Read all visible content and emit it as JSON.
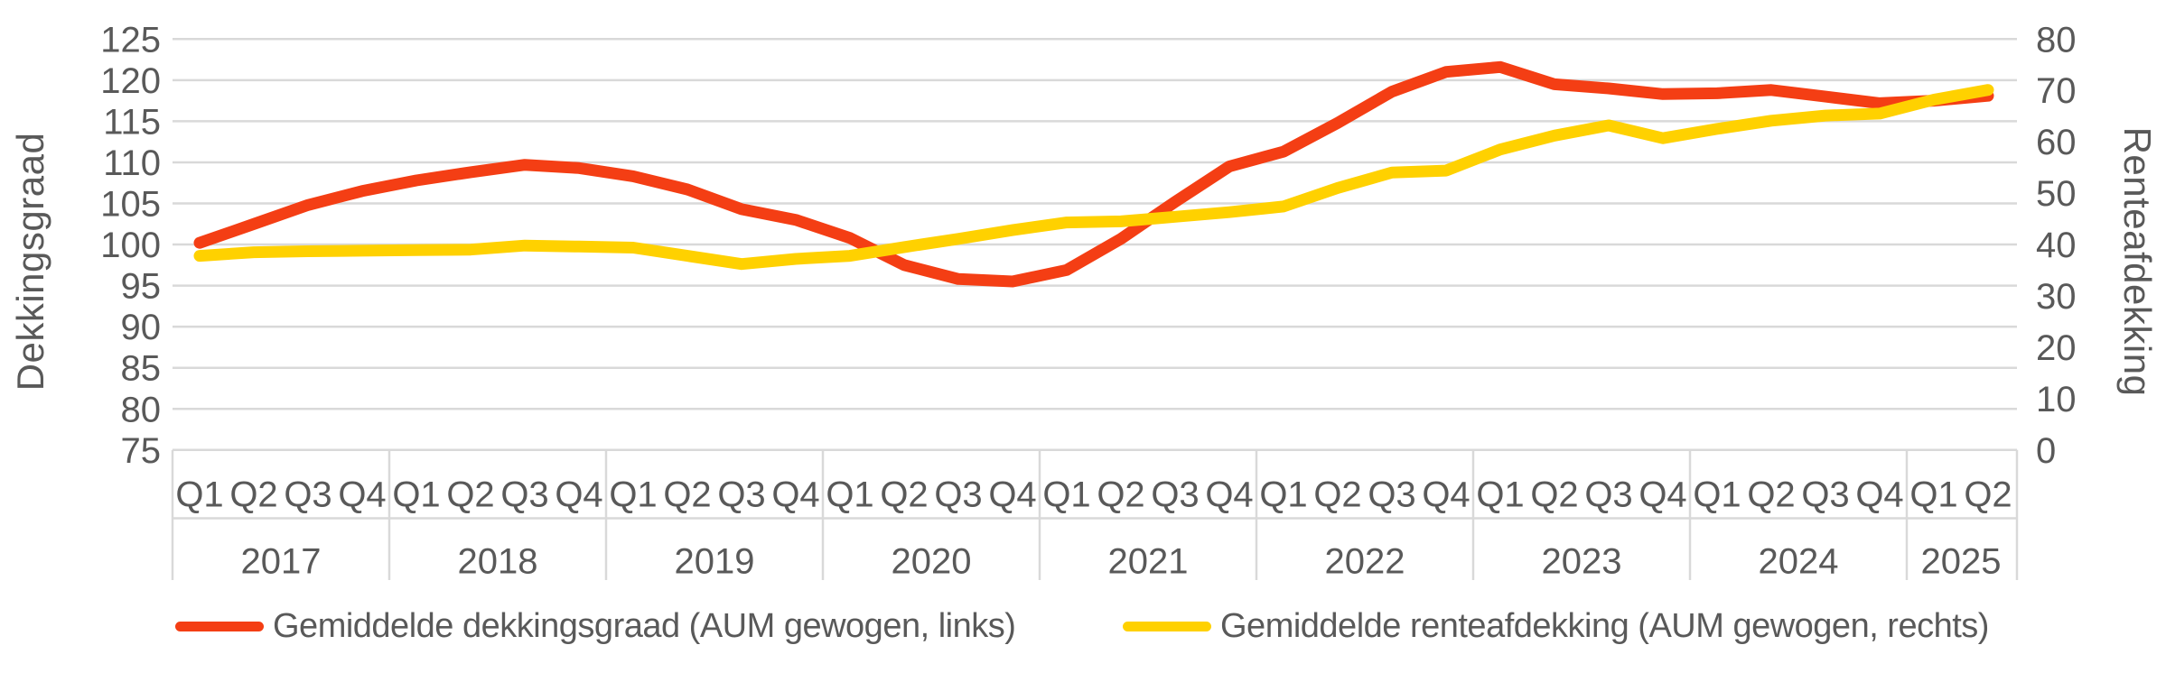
{
  "chart_data": {
    "type": "line",
    "title": "",
    "grid": true,
    "legend_position": "bottom",
    "left_axis": {
      "title": "Dekkingsgraad",
      "min": 75,
      "max": 125,
      "step": 5,
      "ticks": [
        125,
        120,
        115,
        110,
        105,
        100,
        95,
        90,
        85,
        80,
        75
      ]
    },
    "right_axis": {
      "title": "Renteafdekking",
      "min": 0,
      "max": 80,
      "step": 10,
      "ticks": [
        80,
        70,
        60,
        50,
        40,
        30,
        20,
        10,
        0
      ]
    },
    "x_axis": {
      "years": [
        {
          "label": "2017",
          "quarters": [
            "Q1",
            "Q2",
            "Q3",
            "Q4"
          ]
        },
        {
          "label": "2018",
          "quarters": [
            "Q1",
            "Q2",
            "Q3",
            "Q4"
          ]
        },
        {
          "label": "2019",
          "quarters": [
            "Q1",
            "Q2",
            "Q3",
            "Q4"
          ]
        },
        {
          "label": "2020",
          "quarters": [
            "Q1",
            "Q2",
            "Q3",
            "Q4"
          ]
        },
        {
          "label": "2021",
          "quarters": [
            "Q1",
            "Q2",
            "Q3",
            "Q4"
          ]
        },
        {
          "label": "2022",
          "quarters": [
            "Q1",
            "Q2",
            "Q3",
            "Q4"
          ]
        },
        {
          "label": "2023",
          "quarters": [
            "Q1",
            "Q2",
            "Q3",
            "Q4"
          ]
        },
        {
          "label": "2024",
          "quarters": [
            "Q1",
            "Q2",
            "Q3",
            "Q4"
          ]
        },
        {
          "label": "2025",
          "quarters": [
            "Q1",
            "Q2"
          ]
        }
      ]
    },
    "series": [
      {
        "name": "Gemiddelde dekkingsgraad (AUM gewogen, links)",
        "axis": "left",
        "color": "#F43E14",
        "values": [
          100.2,
          102.5,
          104.8,
          106.5,
          107.8,
          108.8,
          109.7,
          109.3,
          108.3,
          106.7,
          104.3,
          103.0,
          100.8,
          97.5,
          95.8,
          95.5,
          96.9,
          100.7,
          105.2,
          109.5,
          111.3,
          114.8,
          118.6,
          121.0,
          121.6,
          119.5,
          119.0,
          118.3,
          118.4,
          118.8,
          118.0,
          117.2,
          117.5,
          118.1
        ]
      },
      {
        "name": "Gemiddelde renteafdekking (AUM gewogen, rechts)",
        "axis": "right",
        "color": "#FFD100",
        "values": [
          37.8,
          38.5,
          38.7,
          38.8,
          38.9,
          39.0,
          39.8,
          39.6,
          39.4,
          37.8,
          36.2,
          37.2,
          37.8,
          39.5,
          41.1,
          42.8,
          44.3,
          44.5,
          45.4,
          46.3,
          47.4,
          51.0,
          54.0,
          54.4,
          58.5,
          61.2,
          63.2,
          60.7,
          62.5,
          64.1,
          65.1,
          65.5,
          68.2,
          70.1
        ]
      }
    ]
  },
  "colors": {
    "grid": "#D9D9D9",
    "axis_text": "#595959",
    "background": "#FFFFFF"
  }
}
